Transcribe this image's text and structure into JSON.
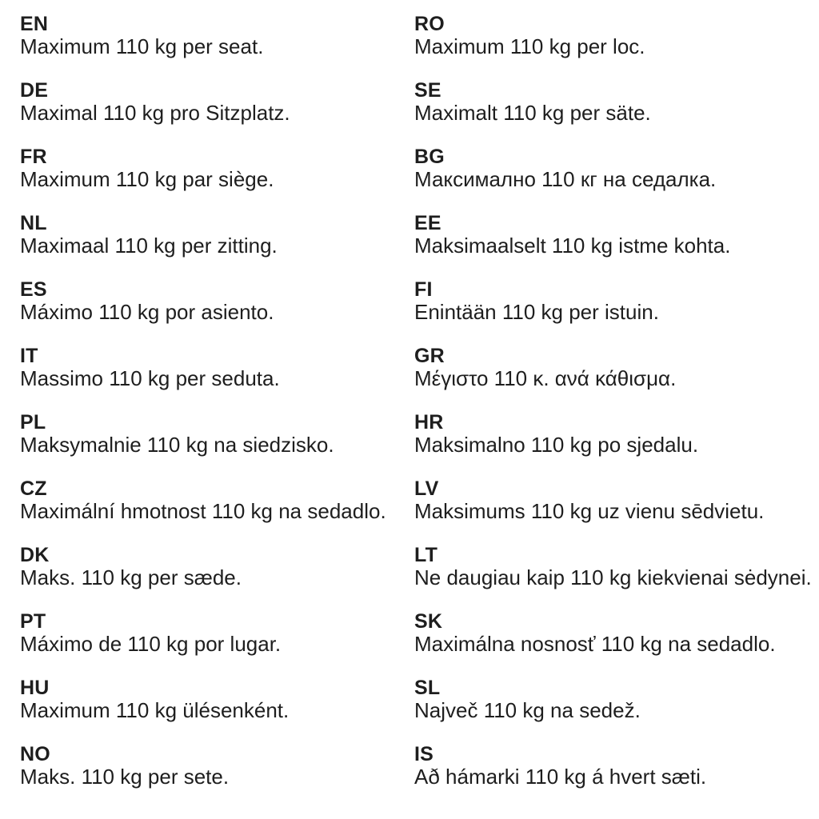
{
  "page": {
    "background_color": "#ffffff",
    "text_color": "#1e1e1e"
  },
  "columns": {
    "left": [
      {
        "code": "EN",
        "text": "Maximum 110 kg per seat."
      },
      {
        "code": "DE",
        "text": "Maximal 110 kg pro Sitzplatz."
      },
      {
        "code": "FR",
        "text": "Maximum 110 kg par siège."
      },
      {
        "code": "NL",
        "text": "Maximaal 110 kg per zitting."
      },
      {
        "code": "ES",
        "text": "Máximo 110 kg por asiento."
      },
      {
        "code": "IT",
        "text": "Massimo 110 kg per seduta."
      },
      {
        "code": "PL",
        "text": "Maksymalnie 110 kg na siedzisko."
      },
      {
        "code": "CZ",
        "text": "Maximální hmotnost 110 kg na sedadlo."
      },
      {
        "code": "DK",
        "text": "Maks. 110 kg per sæde."
      },
      {
        "code": "PT",
        "text": "Máximo de 110 kg por lugar."
      },
      {
        "code": "HU",
        "text": "Maximum 110 kg ülésenként."
      },
      {
        "code": "NO",
        "text": "Maks. 110 kg per sete."
      }
    ],
    "right": [
      {
        "code": "RO",
        "text": "Maximum 110 kg per loc."
      },
      {
        "code": "SE",
        "text": "Maximalt 110 kg per säte."
      },
      {
        "code": "BG",
        "text": "Максимално 110 кг на седалка."
      },
      {
        "code": "EE",
        "text": "Maksimaalselt 110 kg istme kohta."
      },
      {
        "code": "FI",
        "text": "Enintään 110 kg per istuin."
      },
      {
        "code": "GR",
        "text": "Μέγιστο 110 κ. ανά κάθισμα."
      },
      {
        "code": "HR",
        "text": "Maksimalno 110 kg po sjedalu."
      },
      {
        "code": "LV",
        "text": "Maksimums 110 kg uz vienu sēdvietu."
      },
      {
        "code": "LT",
        "text": "Ne daugiau kaip 110 kg kiekvienai sėdynei."
      },
      {
        "code": "SK",
        "text": "Maximálna nosnosť 110 kg na sedadlo."
      },
      {
        "code": "SL",
        "text": "Največ 110 kg na sedež."
      },
      {
        "code": "IS",
        "text": "Að hámarki 110 kg á hvert sæti."
      }
    ]
  }
}
